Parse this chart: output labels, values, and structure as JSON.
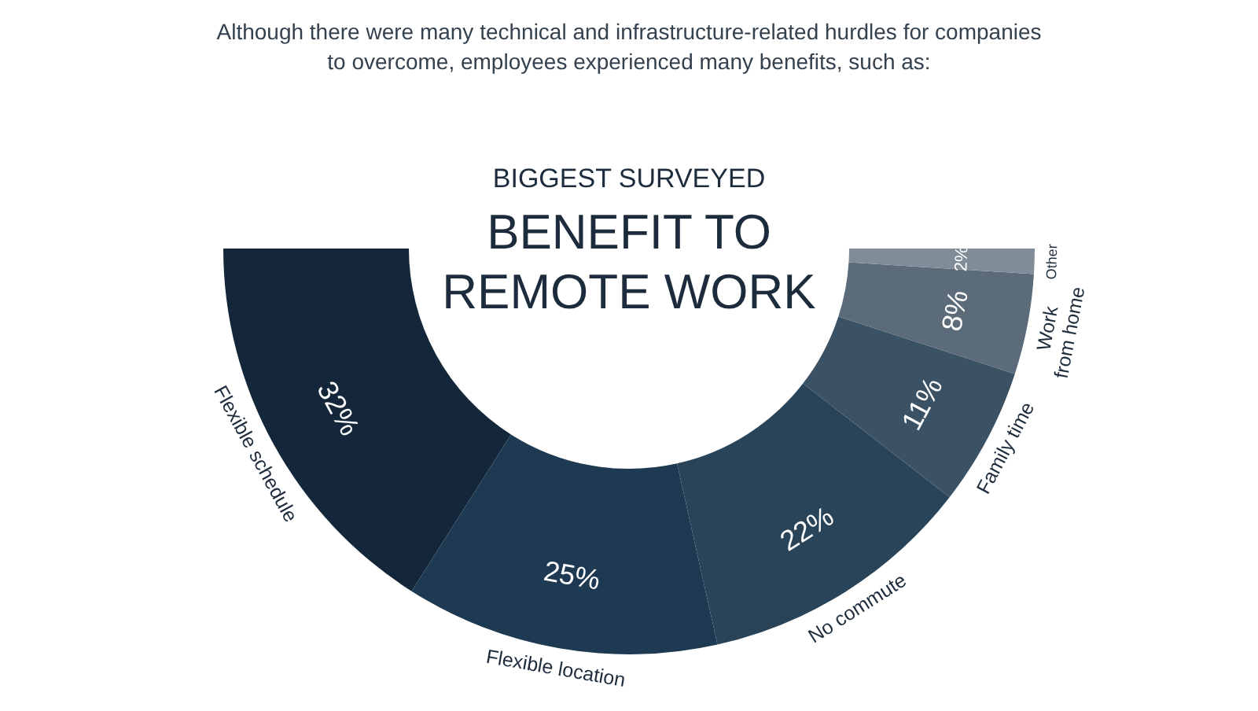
{
  "chart_data": {
    "type": "donut",
    "title": "BENEFIT TO REMOTE WORK",
    "subtitle": "BIGGEST SURVEYED",
    "annotations": [
      "Although there were many technical and infrastructure-related hurdles for companies to overcome, employees experienced many benefits, such as:"
    ],
    "categories": [
      "Flexible schedule",
      "Flexible location",
      "No commute",
      "Family time",
      "Work from home",
      "Other"
    ],
    "values": [
      32,
      25,
      22,
      11,
      8,
      2
    ],
    "value_labels": [
      "32%",
      "25%",
      "22%",
      "11%",
      "8%",
      "2%"
    ],
    "colors": [
      "#14273a",
      "#1e3a52",
      "#294459",
      "#3b5264",
      "#5b6b79",
      "#808c97"
    ]
  }
}
